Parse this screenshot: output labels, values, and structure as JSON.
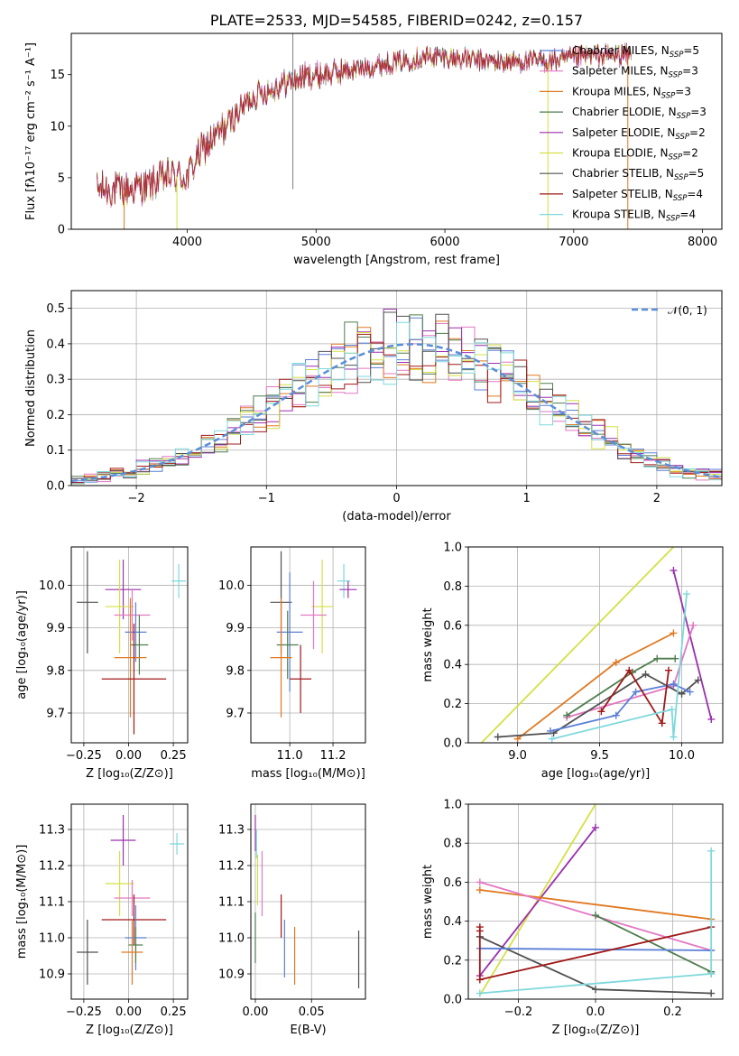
{
  "colors": {
    "Chabrier MILES": "#5b7fd6",
    "Salpeter MILES": "#e377c2",
    "Kroupa MILES": "#e07820",
    "Chabrier ELODIE": "#4e7d4e",
    "Salpeter ELODIE": "#9b2fae",
    "Kroupa ELODIE": "#d4e044",
    "Chabrier STELIB": "#505050",
    "Salpeter STELIB": "#a01818",
    "Kroupa STELIB": "#7dd8dc"
  },
  "legend_spectrum": [
    {
      "name": "Chabrier MILES",
      "n": "5"
    },
    {
      "name": "Salpeter MILES",
      "n": "3"
    },
    {
      "name": "Kroupa MILES",
      "n": "3"
    },
    {
      "name": "Chabrier ELODIE",
      "n": "3"
    },
    {
      "name": "Salpeter ELODIE",
      "n": "2"
    },
    {
      "name": "Kroupa ELODIE",
      "n": "2"
    },
    {
      "name": "Chabrier STELIB",
      "n": "5"
    },
    {
      "name": "Salpeter STELIB",
      "n": "4"
    },
    {
      "name": "Kroupa STELIB",
      "n": "4"
    }
  ],
  "legend_hist": "𝒩(0, 1)",
  "chart_data": [
    {
      "id": "spectrum",
      "type": "line",
      "title": "PLATE=2533, MJD=54585, FIBERID=0242, z=0.157",
      "xlabel": "wavelength [Angstrom, rest frame]",
      "ylabel": "Flux [fλ10⁻¹⁷ erg cm⁻² s⁻¹ A⁻¹]",
      "xlim": [
        3100,
        8150
      ],
      "ylim": [
        0,
        19
      ],
      "xticks": [
        4000,
        5000,
        6000,
        7000,
        8000
      ],
      "yticks": [
        0,
        5,
        10,
        15
      ],
      "grid": false,
      "legend_position": "right",
      "continuum": [
        [
          3300,
          3.9
        ],
        [
          3500,
          3.8
        ],
        [
          3700,
          4.2
        ],
        [
          3850,
          5.2
        ],
        [
          4000,
          5.0
        ],
        [
          4100,
          7.5
        ],
        [
          4300,
          10.0
        ],
        [
          4500,
          12.8
        ],
        [
          4700,
          13.9
        ],
        [
          4900,
          14.8
        ],
        [
          5100,
          15.1
        ],
        [
          5300,
          15.5
        ],
        [
          5500,
          16.0
        ],
        [
          5700,
          16.4
        ],
        [
          5900,
          16.8
        ],
        [
          6100,
          16.6
        ],
        [
          6300,
          16.3
        ],
        [
          6500,
          16.2
        ],
        [
          6700,
          16.3
        ],
        [
          6900,
          16.4
        ],
        [
          7100,
          16.8
        ],
        [
          7300,
          16.9
        ],
        [
          7450,
          16.9
        ]
      ],
      "spikes": [
        {
          "x": 4820,
          "top": 19,
          "bottom": 3.9
        }
      ],
      "dropouts": [
        {
          "x": 3510,
          "series": "Kroupa MILES"
        },
        {
          "x": 3920,
          "series": "Kroupa ELODIE"
        },
        {
          "x": 6800,
          "series": "Kroupa ELODIE"
        },
        {
          "x": 7420,
          "series": "Kroupa MILES"
        }
      ]
    },
    {
      "id": "residual_hist",
      "type": "bar",
      "xlabel": "(data-model)/error",
      "ylabel": "Normed distribution",
      "xlim": [
        -2.5,
        2.5
      ],
      "ylim": [
        0,
        0.55
      ],
      "xticks": [
        -2,
        -1,
        0,
        1,
        2
      ],
      "yticks": [
        0.0,
        0.1,
        0.2,
        0.3,
        0.4,
        0.5
      ],
      "grid": true,
      "legend_position": "top-right",
      "bin_edges": [
        -2.5,
        -2.4,
        -2.3,
        -2.2,
        -2.1,
        -2.0,
        -1.9,
        -1.8,
        -1.7,
        -1.6,
        -1.5,
        -1.4,
        -1.3,
        -1.2,
        -1.1,
        -1.0,
        -0.9,
        -0.8,
        -0.7,
        -0.6,
        -0.5,
        -0.4,
        -0.3,
        -0.2,
        -0.1,
        0.0,
        0.1,
        0.2,
        0.3,
        0.4,
        0.5,
        0.6,
        0.7,
        0.8,
        0.9,
        1.0,
        1.1,
        1.2,
        1.3,
        1.4,
        1.5,
        1.6,
        1.7,
        1.8,
        1.9,
        2.0,
        2.1,
        2.2,
        2.3,
        2.4,
        2.5
      ],
      "gaussian": {
        "mean": 0.12,
        "sigma": 1.0
      }
    },
    {
      "id": "age_vs_Z",
      "type": "scatter",
      "xlabel": "Z [log₁₀(Z/Z⊙)]",
      "ylabel": "age  [log₁₀(age/yr)]",
      "xlim": [
        -0.32,
        0.33
      ],
      "ylim": [
        9.63,
        10.09
      ],
      "xticks": [
        -0.25,
        0.0,
        0.25
      ],
      "yticks": [
        9.7,
        9.8,
        9.9,
        10.0
      ],
      "grid": true,
      "points": [
        {
          "series": "Kroupa STELIB",
          "x": 0.28,
          "y": 10.01,
          "xerr": 0.04,
          "yerr": 0.04
        },
        {
          "series": "Salpeter ELODIE",
          "x": -0.03,
          "y": 9.99,
          "xerr": 0.1,
          "yerr": 0.07
        },
        {
          "series": "Chabrier STELIB",
          "x": -0.23,
          "y": 9.96,
          "xerr": 0.06,
          "yerr": 0.12
        },
        {
          "series": "Kroupa ELODIE",
          "x": -0.05,
          "y": 9.95,
          "xerr": 0.08,
          "yerr": 0.11
        },
        {
          "series": "Salpeter MILES",
          "x": 0.02,
          "y": 9.93,
          "xerr": 0.1,
          "yerr": 0.06
        },
        {
          "series": "Chabrier MILES",
          "x": 0.04,
          "y": 9.89,
          "xerr": 0.06,
          "yerr": 0.07
        },
        {
          "series": "Chabrier ELODIE",
          "x": 0.06,
          "y": 9.86,
          "xerr": 0.05,
          "yerr": 0.07
        },
        {
          "series": "Kroupa MILES",
          "x": 0.01,
          "y": 9.83,
          "xerr": 0.09,
          "yerr": 0.14
        },
        {
          "series": "Salpeter STELIB",
          "x": 0.03,
          "y": 9.78,
          "xerr": 0.18,
          "yerr": 0.13
        }
      ]
    },
    {
      "id": "age_vs_mass",
      "type": "scatter",
      "xlabel": "mass [log₁₀(M/M⊙)]",
      "ylabel": "",
      "xlim": [
        10.82,
        11.35
      ],
      "ylim": [
        9.63,
        10.09
      ],
      "xticks": [
        11.0,
        11.2
      ],
      "yticks": [
        9.7,
        9.8,
        9.9,
        10.0
      ],
      "grid": true,
      "points": [
        {
          "series": "Kroupa STELIB",
          "x": 11.25,
          "y": 10.01,
          "xerr": 0.03,
          "yerr": 0.04
        },
        {
          "series": "Salpeter ELODIE",
          "x": 11.27,
          "y": 9.99,
          "xerr": 0.04,
          "yerr": 0.02
        },
        {
          "series": "Chabrier STELIB",
          "x": 10.96,
          "y": 9.96,
          "xerr": 0.05,
          "yerr": 0.12
        },
        {
          "series": "Kroupa ELODIE",
          "x": 11.15,
          "y": 9.95,
          "xerr": 0.05,
          "yerr": 0.11
        },
        {
          "series": "Salpeter MILES",
          "x": 11.11,
          "y": 9.93,
          "xerr": 0.06,
          "yerr": 0.08
        },
        {
          "series": "Chabrier MILES",
          "x": 11.0,
          "y": 9.89,
          "xerr": 0.06,
          "yerr": 0.14
        },
        {
          "series": "Chabrier ELODIE",
          "x": 10.99,
          "y": 9.86,
          "xerr": 0.05,
          "yerr": 0.08
        },
        {
          "series": "Kroupa MILES",
          "x": 10.96,
          "y": 9.83,
          "xerr": 0.05,
          "yerr": 0.14
        },
        {
          "series": "Salpeter STELIB",
          "x": 11.05,
          "y": 9.78,
          "xerr": 0.05,
          "yerr": 0.08
        }
      ]
    },
    {
      "id": "massweight_vs_age",
      "type": "line",
      "xlabel": "age  [log₁₀(age/yr)]",
      "ylabel": "mass weight",
      "xlim": [
        8.7,
        10.25
      ],
      "ylim": [
        0,
        1
      ],
      "xticks": [
        9.0,
        9.5,
        10.0
      ],
      "yticks": [
        0.0,
        0.2,
        0.4,
        0.6,
        0.8,
        1.0
      ],
      "grid": true,
      "series": [
        {
          "name": "Kroupa ELODIE",
          "x": [
            8.78,
            9.95
          ],
          "y": [
            0.0,
            1.0
          ],
          "markers": false
        },
        {
          "name": "Kroupa MILES",
          "x": [
            9.0,
            9.6,
            9.95
          ],
          "y": [
            0.02,
            0.41,
            0.56
          ]
        },
        {
          "name": "Salpeter ELODIE",
          "x": [
            9.95,
            10.18
          ],
          "y": [
            0.88,
            0.12
          ]
        },
        {
          "name": "Salpeter MILES",
          "x": [
            9.3,
            9.95,
            10.07
          ],
          "y": [
            0.13,
            0.29,
            0.6
          ]
        },
        {
          "name": "Chabrier ELODIE",
          "x": [
            9.3,
            9.7,
            9.85,
            9.96
          ],
          "y": [
            0.14,
            0.36,
            0.43,
            0.43
          ]
        },
        {
          "name": "Chabrier STELIB",
          "x": [
            8.88,
            9.22,
            9.78,
            10.0,
            10.1
          ],
          "y": [
            0.03,
            0.05,
            0.35,
            0.25,
            0.32
          ]
        },
        {
          "name": "Chabrier MILES",
          "x": [
            9.2,
            9.6,
            9.72,
            9.95,
            10.05
          ],
          "y": [
            0.06,
            0.14,
            0.26,
            0.3,
            0.26
          ]
        },
        {
          "name": "Salpeter STELIB",
          "x": [
            9.51,
            9.68,
            9.88,
            9.92
          ],
          "y": [
            0.16,
            0.37,
            0.1,
            0.37
          ]
        },
        {
          "name": "Kroupa STELIB",
          "x": [
            9.21,
            9.94,
            9.95,
            10.03
          ],
          "y": [
            0.02,
            0.17,
            0.03,
            0.76
          ]
        }
      ]
    },
    {
      "id": "mass_vs_Z",
      "type": "scatter",
      "xlabel": "Z [log₁₀(Z/Z⊙)]",
      "ylabel": "mass [log₁₀(M/M⊙)]",
      "xlim": [
        -0.32,
        0.33
      ],
      "ylim": [
        10.83,
        11.37
      ],
      "xticks": [
        -0.25,
        0.0,
        0.25
      ],
      "yticks": [
        10.9,
        11.0,
        11.1,
        11.2,
        11.3
      ],
      "grid": true,
      "points": [
        {
          "series": "Salpeter ELODIE",
          "x": -0.03,
          "y": 11.27,
          "xerr": 0.07,
          "yerr": 0.07
        },
        {
          "series": "Kroupa STELIB",
          "x": 0.27,
          "y": 11.26,
          "xerr": 0.04,
          "yerr": 0.03
        },
        {
          "series": "Kroupa ELODIE",
          "x": -0.05,
          "y": 11.15,
          "xerr": 0.08,
          "yerr": 0.09
        },
        {
          "series": "Salpeter MILES",
          "x": 0.02,
          "y": 11.11,
          "xerr": 0.1,
          "yerr": 0.05
        },
        {
          "series": "Salpeter STELIB",
          "x": 0.03,
          "y": 11.05,
          "xerr": 0.18,
          "yerr": 0.07
        },
        {
          "series": "Chabrier MILES",
          "x": 0.04,
          "y": 11.0,
          "xerr": 0.06,
          "yerr": 0.09
        },
        {
          "series": "Chabrier ELODIE",
          "x": 0.04,
          "y": 10.98,
          "xerr": 0.04,
          "yerr": 0.05
        },
        {
          "series": "Kroupa MILES",
          "x": 0.02,
          "y": 10.96,
          "xerr": 0.06,
          "yerr": 0.09
        },
        {
          "series": "Chabrier STELIB",
          "x": -0.23,
          "y": 10.96,
          "xerr": 0.06,
          "yerr": 0.09
        }
      ]
    },
    {
      "id": "mass_vs_EBV",
      "type": "scatter",
      "xlabel": "E(B-V)",
      "ylabel": "",
      "xlim": [
        -0.004,
        0.098
      ],
      "ylim": [
        10.83,
        11.37
      ],
      "xticks": [
        0.0,
        0.05
      ],
      "yticks": [
        10.9,
        11.0,
        11.1,
        11.2,
        11.3
      ],
      "grid": true,
      "points": [
        {
          "series": "Salpeter ELODIE",
          "x": 0.0,
          "y": 11.29,
          "xerr": 0,
          "yerr": 0.05
        },
        {
          "series": "Kroupa STELIB",
          "x": 0.001,
          "y": 11.26,
          "xerr": 0,
          "yerr": 0.04
        },
        {
          "series": "Kroupa ELODIE",
          "x": 0.002,
          "y": 11.16,
          "xerr": 0,
          "yerr": 0.07
        },
        {
          "series": "Salpeter MILES",
          "x": 0.006,
          "y": 11.15,
          "xerr": 0,
          "yerr": 0.09
        },
        {
          "series": "Salpeter STELIB",
          "x": 0.023,
          "y": 11.06,
          "xerr": 0,
          "yerr": 0.06
        },
        {
          "series": "Chabrier MILES",
          "x": 0.026,
          "y": 10.97,
          "xerr": 0,
          "yerr": 0.08
        },
        {
          "series": "Chabrier ELODIE",
          "x": 0.0,
          "y": 11.0,
          "xerr": 0,
          "yerr": 0.07
        },
        {
          "series": "Kroupa MILES",
          "x": 0.035,
          "y": 10.95,
          "xerr": 0,
          "yerr": 0.08
        },
        {
          "series": "Chabrier STELIB",
          "x": 0.092,
          "y": 10.94,
          "xerr": 0,
          "yerr": 0.08
        }
      ]
    },
    {
      "id": "massweight_vs_Z",
      "type": "line",
      "xlabel": "Z [log₁₀(Z/Z⊙)]",
      "ylabel": "mass weight",
      "xlim": [
        -0.33,
        0.33
      ],
      "ylim": [
        0,
        1
      ],
      "xticks": [
        -0.2,
        0.0,
        0.2
      ],
      "yticks": [
        0.0,
        0.2,
        0.4,
        0.6,
        0.8,
        1.0
      ],
      "grid": true,
      "series": [
        {
          "name": "Kroupa ELODIE",
          "x": [
            -0.3,
            0.0
          ],
          "y": [
            0.02,
            1.0
          ],
          "markers": false
        },
        {
          "name": "Salpeter ELODIE",
          "x": [
            -0.3,
            0.0
          ],
          "y": [
            0.12,
            0.88
          ]
        },
        {
          "name": "Kroupa MILES",
          "x": [
            -0.3,
            0.3
          ],
          "y": [
            0.56,
            0.41
          ]
        },
        {
          "name": "Salpeter MILES",
          "x": [
            -0.3,
            0.3
          ],
          "y": [
            0.6,
            0.25
          ]
        },
        {
          "name": "Chabrier ELODIE",
          "x": [
            0.0,
            0.3,
            0.3
          ],
          "y": [
            0.43,
            0.14,
            0.13
          ]
        },
        {
          "name": "Chabrier STELIB",
          "x": [
            -0.3,
            0.0,
            0.3
          ],
          "y": [
            0.32,
            0.05,
            0.03
          ]
        },
        {
          "name": "Chabrier MILES",
          "x": [
            -0.3,
            0.3
          ],
          "y": [
            0.26,
            0.25
          ]
        },
        {
          "name": "Salpeter STELIB",
          "x": [
            -0.3,
            -0.3,
            -0.3,
            0.3
          ],
          "y": [
            0.37,
            0.35,
            0.1,
            0.37
          ]
        },
        {
          "name": "Kroupa STELIB",
          "x": [
            -0.3,
            0.3,
            0.3
          ],
          "y": [
            0.03,
            0.13,
            0.76
          ]
        }
      ]
    }
  ]
}
